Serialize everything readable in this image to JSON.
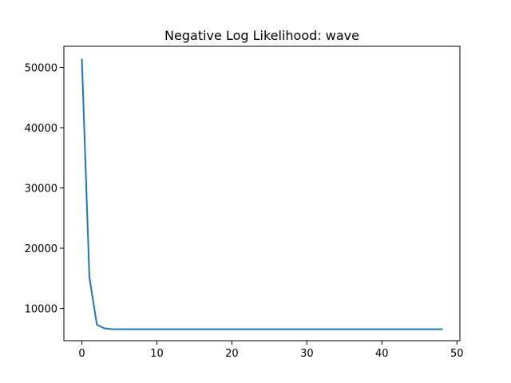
{
  "chart_data": {
    "type": "line",
    "title": "Negative Log Likelihood: wave",
    "xlabel": "",
    "ylabel": "",
    "xlim": [
      -2.4,
      50.4
    ],
    "ylim": [
      4650,
      53500
    ],
    "x_ticks": [
      0,
      10,
      20,
      30,
      40,
      50
    ],
    "x_tick_labels": [
      "0",
      "10",
      "20",
      "30",
      "40",
      "50"
    ],
    "y_ticks": [
      10000,
      20000,
      30000,
      40000,
      50000
    ],
    "y_tick_labels": [
      "10000",
      "20000",
      "30000",
      "40000",
      "50000"
    ],
    "grid": false,
    "legend": "none",
    "series": [
      {
        "color": "#1f77b4",
        "x": [
          0,
          1,
          2,
          3,
          4,
          5,
          6,
          7,
          8,
          9,
          10,
          11,
          12,
          13,
          14,
          15,
          16,
          17,
          18,
          19,
          20,
          21,
          22,
          23,
          24,
          25,
          26,
          27,
          28,
          29,
          30,
          31,
          32,
          33,
          34,
          35,
          36,
          37,
          38,
          39,
          40,
          41,
          42,
          43,
          44,
          45,
          46,
          47,
          48
        ],
        "values": [
          51300,
          15200,
          7300,
          6700,
          6570,
          6550,
          6550,
          6550,
          6550,
          6550,
          6550,
          6550,
          6550,
          6550,
          6550,
          6550,
          6550,
          6550,
          6550,
          6550,
          6550,
          6550,
          6550,
          6550,
          6550,
          6550,
          6550,
          6550,
          6550,
          6550,
          6550,
          6550,
          6550,
          6550,
          6550,
          6550,
          6550,
          6550,
          6550,
          6550,
          6550,
          6550,
          6550,
          6550,
          6550,
          6550,
          6550,
          6550,
          6550
        ]
      }
    ]
  }
}
